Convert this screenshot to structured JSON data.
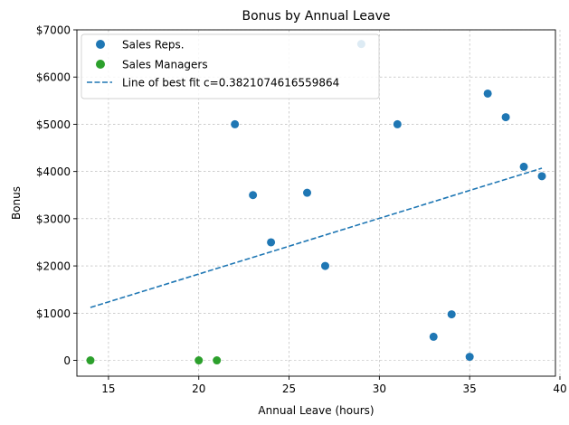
{
  "chart_data": {
    "type": "scatter",
    "title": "Bonus by Annual Leave",
    "xlabel": "Annual Leave (hours)",
    "ylabel": "Bonus",
    "xlim": [
      13.25,
      39.75
    ],
    "ylim": [
      -335,
      7000
    ],
    "x_ticks": [
      15,
      20,
      25,
      30,
      35,
      40
    ],
    "x_tick_labels": [
      "15",
      "20",
      "25",
      "30",
      "35",
      "40"
    ],
    "y_ticks": [
      0,
      1000,
      2000,
      3000,
      4000,
      5000,
      6000,
      7000
    ],
    "y_tick_labels": [
      "0",
      "$1000",
      "$2000",
      "$3000",
      "$4000",
      "$5000",
      "$6000",
      "$7000"
    ],
    "grid": true,
    "legend_position": "top-left",
    "series": [
      {
        "name": "Sales Reps.",
        "kind": "scatter",
        "color": "#1f77b4",
        "points": [
          {
            "x": 22,
            "y": 5000
          },
          {
            "x": 23,
            "y": 3500
          },
          {
            "x": 24,
            "y": 2500
          },
          {
            "x": 26,
            "y": 3550
          },
          {
            "x": 27,
            "y": 2000
          },
          {
            "x": 29,
            "y": 6700
          },
          {
            "x": 31,
            "y": 5000
          },
          {
            "x": 33,
            "y": 500
          },
          {
            "x": 34,
            "y": 975
          },
          {
            "x": 35,
            "y": 75
          },
          {
            "x": 36,
            "y": 5650
          },
          {
            "x": 37,
            "y": 5150
          },
          {
            "x": 38,
            "y": 4100
          },
          {
            "x": 39,
            "y": 3900
          }
        ]
      },
      {
        "name": "Sales Managers",
        "kind": "scatter",
        "color": "#2ca02c",
        "points": [
          {
            "x": 14,
            "y": 0
          },
          {
            "x": 20,
            "y": 0
          },
          {
            "x": 21,
            "y": 0
          }
        ]
      },
      {
        "name": "Line of best fit c=0.3821074616559864",
        "kind": "line",
        "style": "dashed",
        "color": "#1f77b4",
        "points": [
          {
            "x": 14,
            "y": 1120
          },
          {
            "x": 39,
            "y": 4070
          }
        ]
      }
    ]
  }
}
